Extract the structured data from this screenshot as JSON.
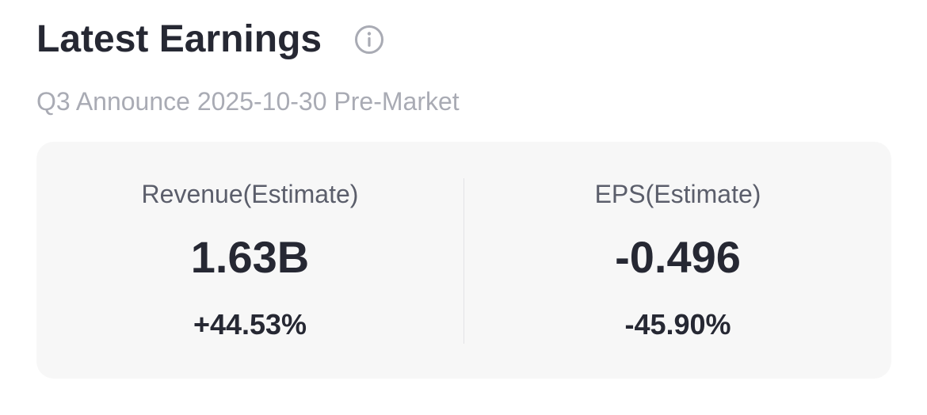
{
  "header": {
    "title": "Latest Earnings",
    "subtitle": "Q3 Announce 2025-10-30 Pre-Market"
  },
  "metrics": [
    {
      "label": "Revenue(Estimate)",
      "value": "1.63B",
      "change": "+44.53%"
    },
    {
      "label": "EPS(Estimate)",
      "value": "-0.496",
      "change": "-45.90%"
    }
  ]
}
